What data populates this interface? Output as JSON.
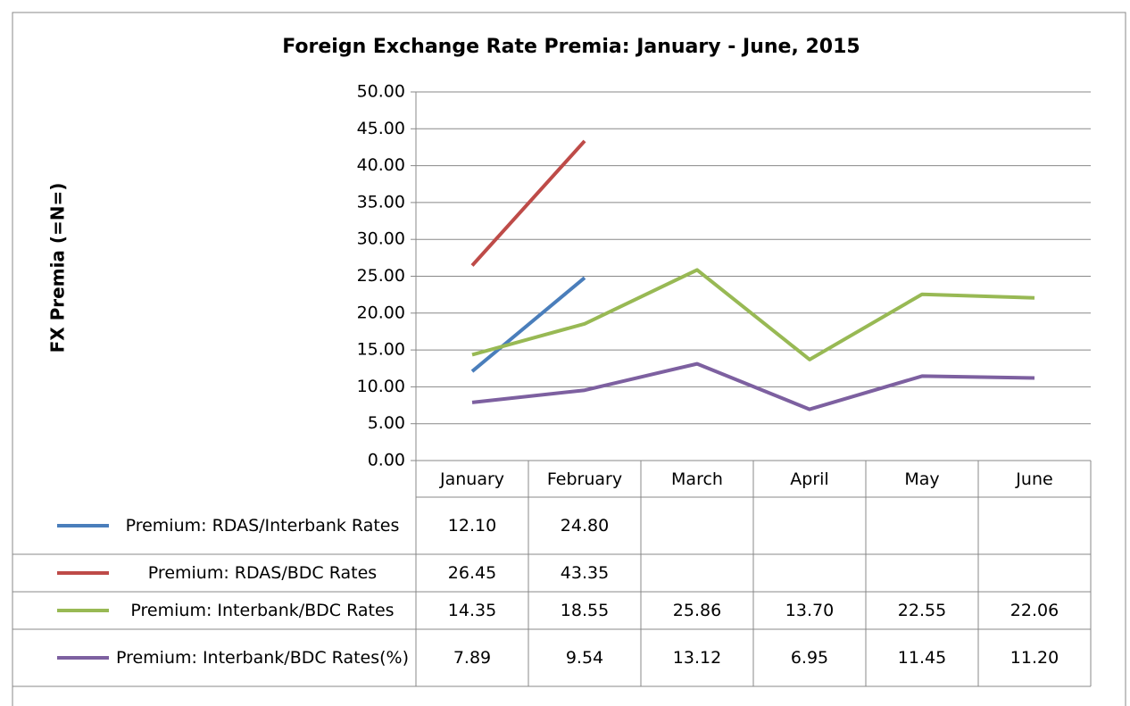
{
  "chart_data": {
    "type": "line",
    "title": "Foreign Exchange Rate Premia: January - June, 2015",
    "y_label": "FX Premia (=N=)",
    "categories": [
      "January",
      "February",
      "March",
      "April",
      "May",
      "June"
    ],
    "ylim": [
      0,
      50
    ],
    "yticks": [
      {
        "value": 0,
        "label": "0.00"
      },
      {
        "value": 5,
        "label": "5.00"
      },
      {
        "value": 10,
        "label": "10.00"
      },
      {
        "value": 15,
        "label": "15.00"
      },
      {
        "value": 20,
        "label": "20.00"
      },
      {
        "value": 25,
        "label": "25.00"
      },
      {
        "value": 30,
        "label": "30.00"
      },
      {
        "value": 35,
        "label": "35.00"
      },
      {
        "value": 40,
        "label": "40.00"
      },
      {
        "value": 45,
        "label": "45.00"
      },
      {
        "value": 50,
        "label": "50.00"
      }
    ],
    "grid": true,
    "series": [
      {
        "name": "Premium: RDAS/Interbank Rates",
        "color": "#4a7ebb",
        "values": [
          12.1,
          24.8,
          null,
          null,
          null,
          null
        ],
        "value_labels": [
          "12.10",
          "24.80",
          null,
          null,
          null,
          null
        ]
      },
      {
        "name": "Premium: RDAS/BDC Rates",
        "color": "#be4b48",
        "values": [
          26.45,
          43.35,
          null,
          null,
          null,
          null
        ],
        "value_labels": [
          "26.45",
          "43.35",
          null,
          null,
          null,
          null
        ]
      },
      {
        "name": "Premium: Interbank/BDC Rates",
        "color": "#98b954",
        "values": [
          14.35,
          18.55,
          25.86,
          13.7,
          22.55,
          22.06
        ],
        "value_labels": [
          "14.35",
          "18.55",
          "25.86",
          "13.70",
          "22.55",
          "22.06"
        ]
      },
      {
        "name": "Premium: Interbank/BDC Rates(%)",
        "color": "#7d60a0",
        "values": [
          7.89,
          9.54,
          13.12,
          6.95,
          11.45,
          11.2
        ],
        "value_labels": [
          "7.89",
          "9.54",
          "13.12",
          "6.95",
          "11.45",
          "11.20"
        ]
      }
    ]
  }
}
